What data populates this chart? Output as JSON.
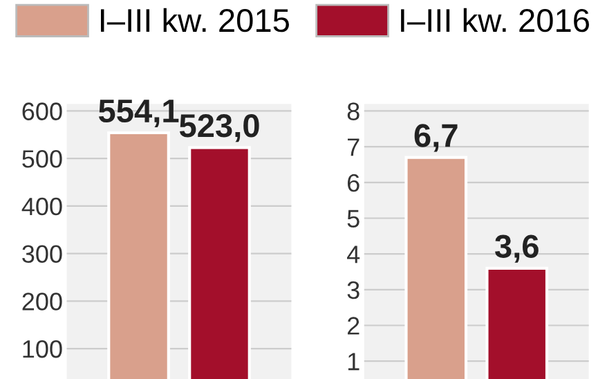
{
  "chart_data": [
    {
      "type": "bar",
      "categories": [
        null
      ],
      "legend": "top",
      "grid": "y",
      "ylim": [
        36,
        615
      ],
      "yticks": [
        100,
        200,
        300,
        400,
        500,
        600
      ],
      "series": [
        {
          "name": "I–III kw. 2015",
          "color": "#d9a08c",
          "values": [
            554.1
          ],
          "value_labels": [
            "554,1"
          ]
        },
        {
          "name": "I–III kw. 2016",
          "color": "#a30f2b",
          "values": [
            523.0
          ],
          "value_labels": [
            "523,0"
          ]
        }
      ]
    },
    {
      "type": "bar",
      "categories": [
        null
      ],
      "grid": "y",
      "ylim": [
        0.5,
        8.2
      ],
      "yticks": [
        1,
        2,
        3,
        4,
        5,
        6,
        7,
        8
      ],
      "series": [
        {
          "color": "#d9a08c",
          "values": [
            6.7
          ],
          "value_labels": [
            "6,7"
          ]
        },
        {
          "color": "#a30f2b",
          "values": [
            3.6
          ],
          "value_labels": [
            "3,6"
          ]
        }
      ]
    }
  ]
}
